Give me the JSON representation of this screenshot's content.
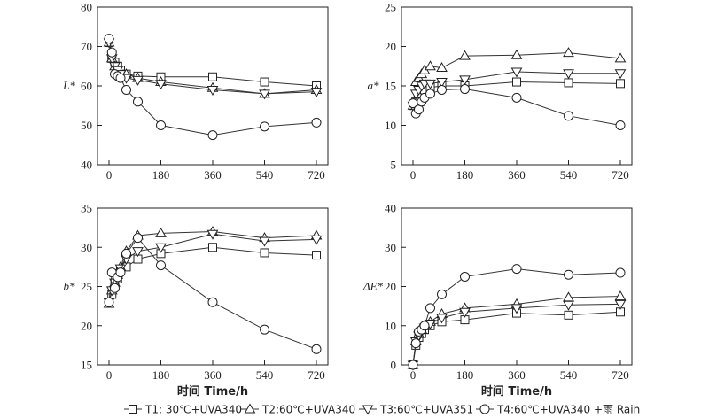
{
  "chart_data": [
    {
      "type": "line",
      "panel": "top-left",
      "ylabel": "L*",
      "xlabel": "",
      "xlim": [
        -40,
        760
      ],
      "ylim": [
        40,
        80
      ],
      "xticks": [
        "0",
        "180",
        "360",
        "540",
        "720"
      ],
      "yticks": [
        "40",
        "50",
        "60",
        "70",
        "80"
      ],
      "x": [
        0,
        10,
        20,
        30,
        40,
        60,
        100,
        180,
        360,
        540,
        720
      ],
      "series": [
        {
          "name": "T1: 30℃+UVA340",
          "marker": "square",
          "values": [
            71,
            67,
            66,
            65,
            64,
            63,
            62.5,
            62.3,
            62.3,
            61,
            60
          ]
        },
        {
          "name": "T2:60℃+UVA340",
          "marker": "triangle-up",
          "values": [
            71,
            67,
            65,
            64,
            63,
            63,
            62,
            61,
            59.5,
            58,
            59
          ]
        },
        {
          "name": "T3:60℃+UVA351",
          "marker": "triangle-down",
          "values": [
            71,
            67,
            65,
            64,
            63,
            62,
            61.5,
            60.5,
            59,
            58,
            58.5
          ]
        },
        {
          "name": "T4:60℃+UVA340 +雨 Rain",
          "marker": "circle",
          "values": [
            72,
            68.5,
            63,
            62.5,
            62,
            59,
            56,
            50,
            47.5,
            49.7,
            50.7
          ]
        }
      ]
    },
    {
      "type": "line",
      "panel": "top-right",
      "ylabel": "a*",
      "xlabel": "",
      "xlim": [
        -40,
        760
      ],
      "ylim": [
        5,
        25
      ],
      "xticks": [
        "0",
        "180",
        "360",
        "540",
        "720"
      ],
      "yticks": [
        "5",
        "10",
        "15",
        "20",
        "25"
      ],
      "x": [
        0,
        10,
        20,
        30,
        40,
        60,
        100,
        180,
        360,
        540,
        720
      ],
      "series": [
        {
          "name": "T1: 30℃+UVA340",
          "marker": "square",
          "values": [
            12.5,
            13,
            13.5,
            14,
            14.5,
            14.8,
            15,
            15,
            15.5,
            15.4,
            15.3
          ]
        },
        {
          "name": "T2:60℃+UVA340",
          "marker": "triangle-up",
          "values": [
            12.5,
            15.5,
            16,
            16.5,
            17,
            17.5,
            17.3,
            18.8,
            18.9,
            19.2,
            18.5
          ]
        },
        {
          "name": "T3:60℃+UVA351",
          "marker": "triangle-down",
          "values": [
            12.5,
            14,
            14.5,
            15,
            15.3,
            15.3,
            15.5,
            15.8,
            16.8,
            16.6,
            16.6
          ]
        },
        {
          "name": "T4:60℃+UVA340 +雨 Rain",
          "marker": "circle",
          "values": [
            12.8,
            11.5,
            12,
            13,
            13.5,
            14,
            14.5,
            14.6,
            13.5,
            11.2,
            10
          ]
        }
      ]
    },
    {
      "type": "line",
      "panel": "bottom-left",
      "ylabel": "b*",
      "xlabel": "时间 Time/h",
      "xlim": [
        -40,
        760
      ],
      "ylim": [
        15,
        35
      ],
      "xticks": [
        "0",
        "180",
        "360",
        "540",
        "720"
      ],
      "yticks": [
        "15",
        "20",
        "25",
        "30",
        "35"
      ],
      "x": [
        0,
        10,
        20,
        30,
        40,
        60,
        100,
        180,
        360,
        540,
        720
      ],
      "series": [
        {
          "name": "T1: 30℃+UVA340",
          "marker": "square",
          "values": [
            23,
            24,
            25,
            26,
            27,
            27.5,
            28.5,
            29.2,
            30,
            29.3,
            29
          ]
        },
        {
          "name": "T2:60℃+UVA340",
          "marker": "triangle-up",
          "values": [
            22.8,
            24.5,
            25.5,
            26.5,
            27.5,
            29.5,
            31.5,
            31.8,
            32,
            31.2,
            31.5
          ]
        },
        {
          "name": "T3:60℃+UVA351",
          "marker": "triangle-down",
          "values": [
            23,
            24.5,
            25.5,
            26.5,
            27.3,
            28.5,
            29.5,
            30,
            31.7,
            30.8,
            31
          ]
        },
        {
          "name": "T4:60℃+UVA340 +雨 Rain",
          "marker": "circle",
          "values": [
            23,
            26.8,
            24.8,
            26.2,
            26.8,
            29.2,
            31.2,
            27.7,
            23,
            19.5,
            17
          ]
        }
      ]
    },
    {
      "type": "line",
      "panel": "bottom-right",
      "ylabel": "ΔE*",
      "xlabel": "时间 Time/h",
      "xlim": [
        -40,
        760
      ],
      "ylim": [
        0,
        40
      ],
      "xticks": [
        "0",
        "180",
        "360",
        "540",
        "720"
      ],
      "yticks": [
        "0",
        "10",
        "20",
        "30",
        "40"
      ],
      "x": [
        0,
        10,
        20,
        30,
        40,
        60,
        100,
        180,
        360,
        540,
        720
      ],
      "series": [
        {
          "name": "T1: 30℃+UVA340",
          "marker": "square",
          "values": [
            0,
            5,
            7,
            8,
            9,
            10,
            11,
            11.5,
            13.2,
            12.7,
            13.5
          ]
        },
        {
          "name": "T2:60℃+UVA340",
          "marker": "triangle-up",
          "values": [
            0,
            6,
            8,
            9,
            10,
            11,
            13,
            14.5,
            15.5,
            17.2,
            17.5
          ]
        },
        {
          "name": "T3:60℃+UVA351",
          "marker": "triangle-down",
          "values": [
            0,
            6,
            7.5,
            8.5,
            9.5,
            10.5,
            12,
            13.5,
            14.5,
            15.3,
            15.5
          ]
        },
        {
          "name": "T4:60℃+UVA340 +雨 Rain",
          "marker": "circle",
          "values": [
            0,
            5.5,
            8.5,
            9,
            10,
            14.5,
            18,
            22.5,
            24.5,
            23,
            23.5
          ]
        }
      ]
    }
  ],
  "legend": {
    "placement": "bottom",
    "items": [
      {
        "label": "T1: 30℃+UVA340",
        "marker": "square"
      },
      {
        "label": "T2:60℃+UVA340",
        "marker": "triangle-up"
      },
      {
        "label": "T3:60℃+UVA351",
        "marker": "triangle-down"
      },
      {
        "label": "T4:60℃+UVA340 +雨 Rain",
        "marker": "circle"
      }
    ]
  }
}
